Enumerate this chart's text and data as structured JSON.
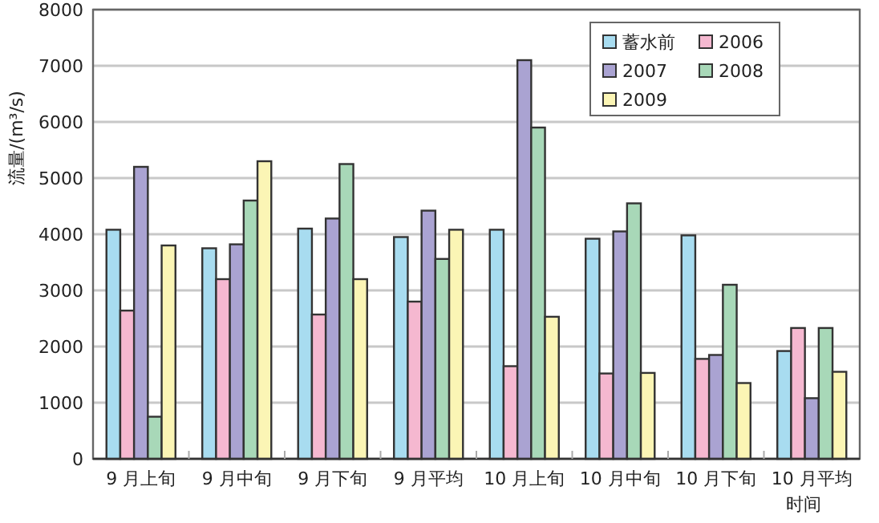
{
  "chart_data": {
    "type": "bar",
    "xlabel": "时间",
    "ylabel": "流量/(m³/s)",
    "categories": [
      "9 月上旬",
      "9 月中旬",
      "9 月下旬",
      "9 月平均",
      "10 月上旬",
      "10 月中旬",
      "10 月下旬",
      "10 月平均"
    ],
    "series": [
      {
        "name": "蓄水前",
        "color": "#a8dcf0",
        "values": [
          4080,
          3750,
          4100,
          3950,
          4080,
          3920,
          3980,
          1920
        ]
      },
      {
        "name": "2006",
        "color": "#f5b8d0",
        "values": [
          2640,
          3200,
          2570,
          2800,
          1650,
          1520,
          1780,
          2330
        ]
      },
      {
        "name": "2007",
        "color": "#aaa3d2",
        "values": [
          5200,
          3820,
          4280,
          4420,
          7100,
          4050,
          1850,
          1080
        ]
      },
      {
        "name": "2008",
        "color": "#a8d8b8",
        "values": [
          750,
          4600,
          5250,
          3560,
          5900,
          4550,
          3100,
          2330
        ]
      },
      {
        "name": "2009",
        "color": "#fbf5b5",
        "values": [
          3800,
          5300,
          3200,
          4080,
          2530,
          1530,
          1350,
          1550
        ]
      }
    ],
    "ylim": [
      0,
      8000
    ],
    "yticks": [
      0,
      1000,
      2000,
      3000,
      4000,
      5000,
      6000,
      7000,
      8000
    ],
    "grid": "y",
    "legend": "top right"
  }
}
